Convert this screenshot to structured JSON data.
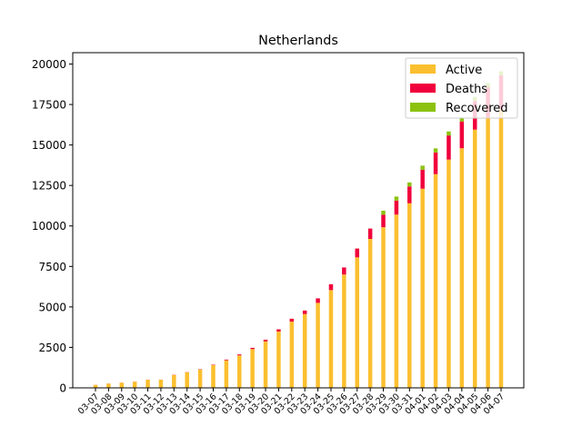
{
  "chart_data": {
    "type": "bar",
    "stacked": true,
    "title": "Netherlands",
    "xlabel": "",
    "ylabel": "",
    "ylim": [
      0,
      20700
    ],
    "yticks": [
      0,
      2500,
      5000,
      7500,
      10000,
      12500,
      15000,
      17500,
      20000
    ],
    "ytick_labels": [
      "0",
      "2500",
      "5000",
      "7500",
      "10000",
      "12500",
      "15000",
      "17500",
      "20000"
    ],
    "grid": false,
    "legend_position": "top-right",
    "categories": [
      "03-07",
      "03-08",
      "03-09",
      "03-10",
      "03-11",
      "03-12",
      "03-13",
      "03-14",
      "03-15",
      "03-16",
      "03-17",
      "03-18",
      "03-19",
      "03-20",
      "03-21",
      "03-22",
      "03-23",
      "03-24",
      "03-25",
      "03-26",
      "03-27",
      "03-28",
      "03-29",
      "03-30",
      "03-31",
      "04-01",
      "04-02",
      "04-03",
      "04-04",
      "04-05",
      "04-06",
      "04-07"
    ],
    "series": [
      {
        "name": "Active",
        "color": "#fbbf2f",
        "values": [
          188,
          264,
          321,
          382,
          503,
          503,
          804,
          959,
          1135,
          1413,
          1705,
          2006,
          2395,
          2867,
          3480,
          4090,
          4560,
          5250,
          6040,
          7000,
          8060,
          9200,
          9920,
          10700,
          11400,
          12300,
          13200,
          14100,
          14800,
          15950,
          16700,
          17200
        ]
      },
      {
        "name": "Deaths",
        "color": "#f0003c",
        "values": [
          1,
          3,
          3,
          4,
          5,
          5,
          10,
          12,
          20,
          24,
          43,
          58,
          76,
          106,
          136,
          179,
          213,
          276,
          356,
          434,
          546,
          639,
          771,
          864,
          1039,
          1173,
          1339,
          1487,
          1651,
          1766,
          1867,
          2101
        ]
      },
      {
        "name": "Recovered",
        "color": "#8cc20f",
        "values": [
          0,
          0,
          0,
          0,
          0,
          0,
          0,
          0,
          0,
          0,
          0,
          2,
          2,
          2,
          3,
          3,
          3,
          3,
          3,
          3,
          3,
          3,
          250,
          250,
          250,
          250,
          250,
          250,
          250,
          250,
          250,
          250
        ]
      }
    ]
  }
}
